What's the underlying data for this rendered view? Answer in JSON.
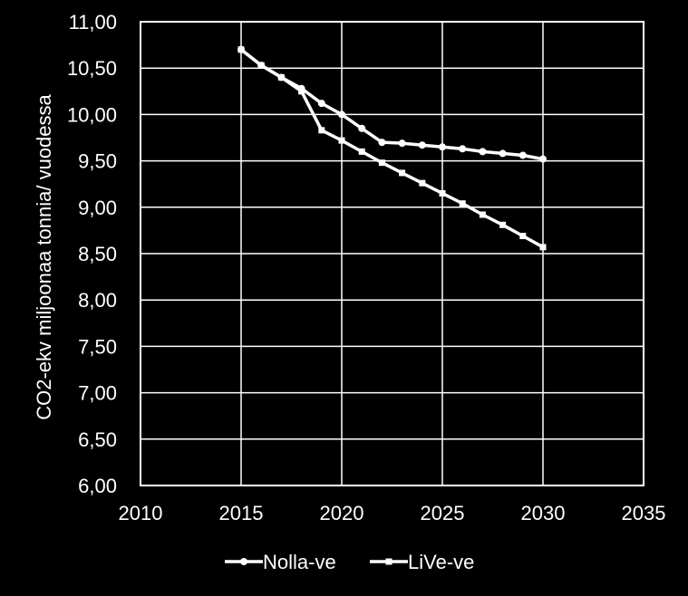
{
  "chart_data": {
    "type": "line",
    "title": "",
    "xlabel": "",
    "ylabel": "CO2-ekv miljoonaa tonnia/ vuodessa",
    "xlim": [
      2010,
      2035
    ],
    "ylim": [
      6.0,
      11.0
    ],
    "x_ticks": [
      "2010",
      "2015",
      "2020",
      "2025",
      "2030",
      "2035"
    ],
    "y_ticks": [
      "6,00",
      "6,50",
      "7,00",
      "7,50",
      "8,00",
      "8,50",
      "9,00",
      "9,50",
      "10,00",
      "10,50",
      "11,00"
    ],
    "grid": true,
    "legend_position": "bottom",
    "colors": {
      "background": "#000000",
      "foreground": "#ffffff"
    },
    "series": [
      {
        "name": "Nolla-ve",
        "marker": "circle",
        "x": [
          2015,
          2016,
          2017,
          2018,
          2019,
          2020,
          2021,
          2022,
          2023,
          2024,
          2025,
          2026,
          2027,
          2028,
          2029,
          2030
        ],
        "y": [
          10.7,
          10.53,
          10.4,
          10.28,
          10.12,
          10.0,
          9.85,
          9.7,
          9.69,
          9.67,
          9.65,
          9.63,
          9.6,
          9.58,
          9.56,
          9.52
        ]
      },
      {
        "name": "LiVe-ve",
        "marker": "square",
        "x": [
          2015,
          2016,
          2017,
          2018,
          2019,
          2020,
          2021,
          2022,
          2023,
          2024,
          2025,
          2026,
          2027,
          2028,
          2029,
          2030
        ],
        "y": [
          10.7,
          10.53,
          10.4,
          10.25,
          9.83,
          9.72,
          9.6,
          9.48,
          9.37,
          9.26,
          9.15,
          9.04,
          8.92,
          8.81,
          8.69,
          8.57
        ]
      }
    ]
  }
}
